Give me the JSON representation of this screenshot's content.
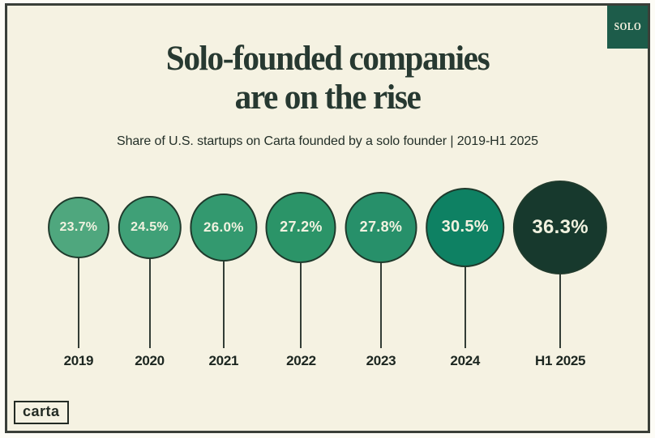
{
  "badge": {
    "label": "SOLO"
  },
  "header": {
    "title_line1": "Solo-founded companies",
    "title_line2": "are on the rise",
    "subtitle": "Share of U.S. startups on Carta founded by a solo founder | 2019-H1 2025"
  },
  "footer": {
    "logo_label": "carta"
  },
  "colors": {
    "background": "#f5f2e2",
    "card_border": "#3a3f38",
    "title": "#273931",
    "badge_bg": "#1d5c4a",
    "badge_text": "#f2efdd",
    "stem": "#333d36",
    "year_label": "#1c2620",
    "bubble_outline": "#1f3a2c",
    "bubble_label": "#f1f2e0"
  },
  "chart_data": {
    "type": "bubble",
    "title": "Solo-founded companies are on the rise",
    "subtitle": "Share of U.S. startups on Carta founded by a solo founder | 2019-H1 2025",
    "categories": [
      "2019",
      "2020",
      "2021",
      "2022",
      "2023",
      "2024",
      "H1 2025"
    ],
    "values": [
      23.7,
      24.5,
      26.0,
      27.2,
      27.8,
      30.5,
      36.3
    ],
    "value_labels": [
      "23.7%",
      "24.5%",
      "26.0%",
      "27.2%",
      "27.8%",
      "30.5%",
      "36.3%"
    ],
    "unit": "%",
    "bubble_colors": [
      "#4fa77e",
      "#3fa077",
      "#33996f",
      "#2b9468",
      "#27906a",
      "#0e8163",
      "#17392d"
    ],
    "layout_hint": "bubble diameter proportional to value; stems connect bubbles down to year labels on a timeline"
  }
}
